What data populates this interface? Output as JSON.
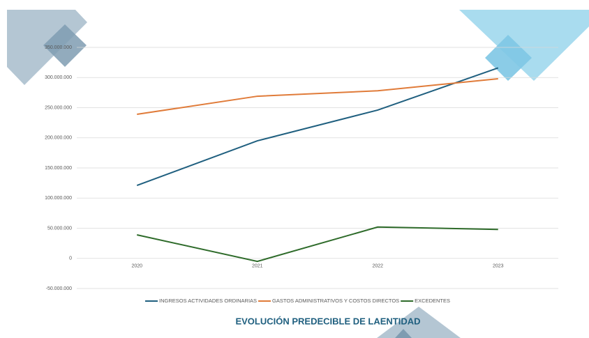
{
  "chart_data": {
    "type": "line",
    "title": "EVOLUCIÓN PREDECIBLE DE LAENTIDAD",
    "categories": [
      "2020",
      "2021",
      "2022",
      "2023"
    ],
    "series": [
      {
        "name": "INGRESOS ACTIVIDADES ORDINARIAS",
        "color": "#1f5f7f",
        "values": [
          121000000,
          195000000,
          246000000,
          316000000
        ]
      },
      {
        "name": "GASTOS ADMINISTRATIVOS Y COSTOS DIRECTOS",
        "color": "#e07b39",
        "values": [
          239000000,
          269000000,
          278000000,
          298000000
        ]
      },
      {
        "name": "EXCEDENTES",
        "color": "#2e6b2a",
        "values": [
          39000000,
          -5000000,
          52000000,
          48000000
        ]
      }
    ],
    "ylim": [
      -50000000,
      350000000
    ],
    "yticks": [
      {
        "value": -50000000,
        "label": "-50.000.000"
      },
      0,
      {
        "value": 50000000,
        "label": "50.000.000"
      },
      {
        "value": 100000000,
        "label": "100.000.000"
      },
      {
        "value": 150000000,
        "label": "150.000.000"
      },
      {
        "value": 200000000,
        "label": "200.000.000"
      },
      {
        "value": 250000000,
        "label": "250.000.000"
      },
      {
        "value": 300000000,
        "label": "300.000.000"
      },
      {
        "value": 350000000,
        "label": "350.000.000"
      }
    ],
    "grid": true,
    "legend": "bottom"
  }
}
